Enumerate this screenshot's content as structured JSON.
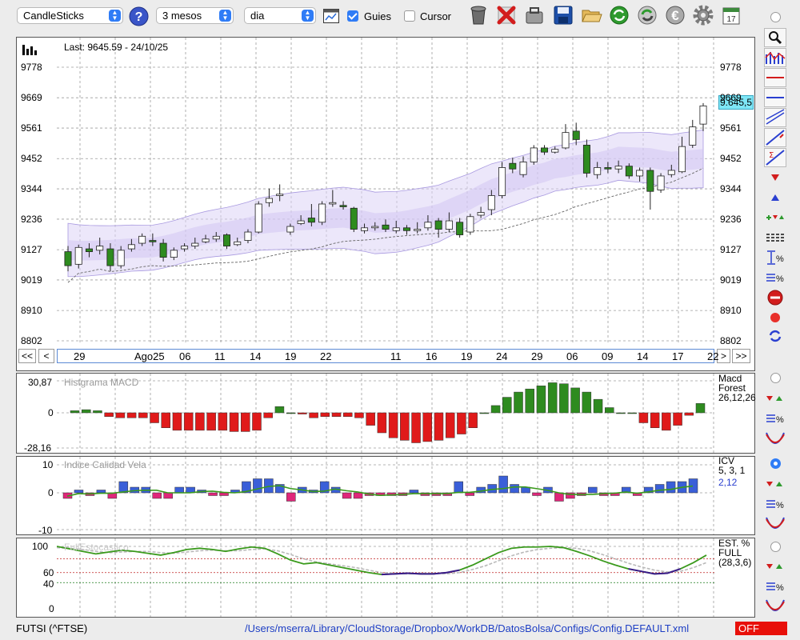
{
  "toolbar": {
    "chart_type": "CandleSticks",
    "period": "3 mesos",
    "interval": "dia",
    "guies_label": "Guies",
    "guies_checked": true,
    "cursor_label": "Cursor",
    "cursor_checked": false,
    "icons": [
      "help-icon",
      "chart-settings-icon",
      "trash-icon",
      "close-icon",
      "toolbox-icon",
      "save-icon",
      "folder-open-icon",
      "refresh-icon",
      "sync-icon",
      "euro-icon",
      "gear-icon",
      "calendar-icon"
    ],
    "calendar_day": "17"
  },
  "main_chart": {
    "last_label": "Last: 9645.59 - 24/10/25",
    "y_ticks": [
      "9778",
      "9669",
      "9561",
      "9452",
      "9344",
      "9236",
      "9127",
      "9019",
      "8910",
      "8802"
    ],
    "price_tag": "9.645,5",
    "x_labels": [
      "29",
      "Ago25",
      "06",
      "11",
      "14",
      "19",
      "22",
      "11",
      "16",
      "19",
      "24",
      "29",
      "06",
      "09",
      "14",
      "17",
      "22"
    ],
    "nav": {
      "first": "<<",
      "prev": "<",
      "next": ">",
      "last": ">>"
    }
  },
  "macd": {
    "title": "Histgrama MACD",
    "y_top": "30,87",
    "y_mid": "0",
    "y_bot": "-28,16",
    "name": "Macd",
    "sub": "Forest",
    "params": "26,12,26"
  },
  "icv": {
    "title": "Indice Calidad Vela",
    "y_top": "10",
    "y_mid": "0",
    "y_bot": "-10",
    "name": "ICV",
    "params": "5, 3, 1",
    "value": "2,12"
  },
  "stoch": {
    "title": "FullEstocastico",
    "y_ticks": [
      "100",
      "60",
      "40",
      "0"
    ],
    "name": "EST. %",
    "sub": "FULL",
    "params": "(28,3,6)"
  },
  "status": {
    "symbol": "FUTSI (^FTSE)",
    "path": "/Users/mserra/Library/CloudStorage/Dropbox/WorkDB/DatosBolsa/Configs/Config.DEFAULT.xml",
    "state": "OFF"
  },
  "candles": [
    [
      9120,
      9070,
      9140,
      9050
    ],
    [
      9075,
      9135,
      9145,
      9060
    ],
    [
      9130,
      9120,
      9150,
      9100
    ],
    [
      9125,
      9140,
      9170,
      9110
    ],
    [
      9130,
      9070,
      9150,
      9050
    ],
    [
      9070,
      9125,
      9140,
      9060
    ],
    [
      9130,
      9145,
      9165,
      9120
    ],
    [
      9150,
      9175,
      9185,
      9140
    ],
    [
      9160,
      9155,
      9185,
      9140
    ],
    [
      9150,
      9100,
      9165,
      9085
    ],
    [
      9100,
      9125,
      9135,
      9090
    ],
    [
      9130,
      9140,
      9150,
      9120
    ],
    [
      9140,
      9150,
      9170,
      9130
    ],
    [
      9155,
      9165,
      9180,
      9150
    ],
    [
      9165,
      9175,
      9190,
      9155
    ],
    [
      9180,
      9140,
      9185,
      9130
    ],
    [
      9145,
      9155,
      9170,
      9140
    ],
    [
      9160,
      9190,
      9200,
      9150
    ],
    [
      9190,
      9290,
      9300,
      9185
    ],
    [
      9295,
      9310,
      9345,
      9280
    ],
    [
      9320,
      9325,
      9360,
      9300
    ],
    [
      9190,
      9210,
      9220,
      9180
    ],
    [
      9220,
      9230,
      9250,
      9215
    ],
    [
      9240,
      9225,
      9290,
      9210
    ],
    [
      9225,
      9290,
      9300,
      9215
    ],
    [
      9290,
      9295,
      9340,
      9280
    ],
    [
      9285,
      9280,
      9300,
      9270
    ],
    [
      9275,
      9200,
      9280,
      9190
    ],
    [
      9195,
      9205,
      9220,
      9185
    ],
    [
      9205,
      9210,
      9225,
      9195
    ],
    [
      9215,
      9200,
      9235,
      9190
    ],
    [
      9195,
      9205,
      9230,
      9185
    ],
    [
      9205,
      9195,
      9215,
      9180
    ],
    [
      9195,
      9200,
      9225,
      9185
    ],
    [
      9205,
      9225,
      9250,
      9195
    ],
    [
      9230,
      9200,
      9240,
      9170
    ],
    [
      9200,
      9230,
      9260,
      9190
    ],
    [
      9225,
      9180,
      9240,
      9170
    ],
    [
      9190,
      9245,
      9255,
      9180
    ],
    [
      9250,
      9260,
      9280,
      9240
    ],
    [
      9270,
      9320,
      9340,
      9250
    ],
    [
      9320,
      9420,
      9440,
      9310
    ],
    [
      9435,
      9415,
      9455,
      9400
    ],
    [
      9395,
      9440,
      9460,
      9385
    ],
    [
      9440,
      9490,
      9500,
      9430
    ],
    [
      9490,
      9475,
      9500,
      9465
    ],
    [
      9475,
      9485,
      9495,
      9470
    ],
    [
      9490,
      9545,
      9575,
      9485
    ],
    [
      9550,
      9520,
      9580,
      9500
    ],
    [
      9500,
      9400,
      9520,
      9385
    ],
    [
      9395,
      9420,
      9440,
      9380
    ],
    [
      9420,
      9415,
      9440,
      9400
    ],
    [
      9415,
      9425,
      9445,
      9400
    ],
    [
      9425,
      9390,
      9435,
      9380
    ],
    [
      9390,
      9410,
      9420,
      9370
    ],
    [
      9410,
      9335,
      9420,
      9270
    ],
    [
      9340,
      9390,
      9400,
      9330
    ],
    [
      9395,
      9410,
      9430,
      9385
    ],
    [
      9405,
      9495,
      9530,
      9400
    ],
    [
      9500,
      9565,
      9590,
      9490
    ],
    [
      9575,
      9640,
      9650,
      9550
    ]
  ],
  "macd_values": [
    2,
    3,
    2,
    -3,
    -4,
    -4,
    -4,
    -8,
    -12,
    -14,
    -14,
    -14,
    -14,
    -14,
    -15,
    -15,
    -14,
    -4,
    6,
    0,
    -1,
    -4,
    -3,
    -3,
    -3,
    -4,
    -10,
    -16,
    -20,
    -22,
    -24,
    -23,
    -22,
    -20,
    -17,
    -12,
    0,
    7,
    15,
    20,
    23,
    26,
    29,
    28,
    24,
    20,
    13,
    5,
    0,
    0,
    -8,
    -12,
    -14,
    -10,
    -2,
    9
  ],
  "icv_values": [
    -2,
    1,
    -1,
    1,
    -2,
    4,
    2,
    2,
    -2,
    -2,
    2,
    2,
    1,
    -1,
    -1,
    1,
    4,
    5,
    5,
    3,
    -3,
    2,
    1,
    4,
    2,
    -2,
    -2,
    -1,
    -1,
    -1,
    -1,
    1,
    -1,
    -1,
    -1,
    4,
    -1,
    2,
    3,
    6,
    3,
    2,
    -1,
    2,
    -3,
    -2,
    -1,
    2,
    -1,
    -1,
    2,
    -1,
    2,
    3,
    4,
    4,
    5
  ],
  "colors": {
    "up": "#ffffff",
    "down": "#2e8b1f",
    "macd_pos": "#2e8b1f",
    "macd_neg": "#e01a1a",
    "icv_pos": "#3a5fd8",
    "icv_neg": "#e0267a",
    "stoch_k": "#3a9a1c",
    "stoch_d": "#b9b9b9",
    "band": "#dcd3f5",
    "accent": "#2f7cf6",
    "off": "#e8100a"
  }
}
